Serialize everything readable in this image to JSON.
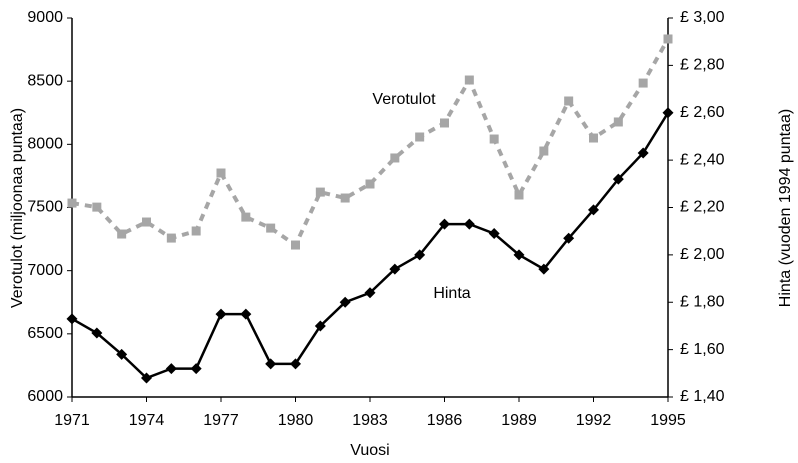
{
  "chart_data": {
    "type": "line",
    "x": [
      1971,
      1972,
      1973,
      1974,
      1975,
      1976,
      1977,
      1978,
      1979,
      1980,
      1981,
      1982,
      1983,
      1984,
      1985,
      1986,
      1987,
      1988,
      1989,
      1990,
      1991,
      1992,
      1993,
      1994,
      1995
    ],
    "series": [
      {
        "name": "Verotulot",
        "color": "#a6a6a6",
        "axis": "y",
        "values": [
          7535,
          7503,
          7290,
          7385,
          7258,
          7314,
          7773,
          7424,
          7337,
          7203,
          7622,
          7575,
          7686,
          7892,
          8058,
          8169,
          8509,
          8042,
          7599,
          7947,
          8343,
          8050,
          8177,
          8485,
          8834
        ]
      },
      {
        "name": "Hinta",
        "color": "#000000",
        "axis": "y2",
        "values": [
          1.73,
          1.67,
          1.58,
          1.48,
          1.52,
          1.52,
          1.75,
          1.75,
          1.54,
          1.54,
          1.7,
          1.8,
          1.84,
          1.94,
          2.0,
          2.13,
          2.13,
          2.09,
          2.0,
          1.94,
          2.07,
          2.19,
          2.32,
          2.43,
          2.6
        ]
      }
    ],
    "xlabel": "Vuosi",
    "ylabel": "Verotulot (miljoonaa puntaa)",
    "y2label": "Hinta (vuoden 1994 puntaa)",
    "xlim": [
      1971,
      1995
    ],
    "xticks": [
      1971,
      1974,
      1977,
      1980,
      1983,
      1986,
      1989,
      1992,
      1995
    ],
    "ylim": [
      6000,
      9000
    ],
    "yticks": [
      6000,
      6500,
      7000,
      7500,
      8000,
      8500,
      9000
    ],
    "y2lim": [
      1.4,
      3.0
    ],
    "y2ticks": [
      {
        "value": 1.4,
        "label": "£ 1,40"
      },
      {
        "value": 1.6,
        "label": "£ 1,60"
      },
      {
        "value": 1.8,
        "label": "£ 1,80"
      },
      {
        "value": 2.0,
        "label": "£ 2,00"
      },
      {
        "value": 2.2,
        "label": "£ 2,20"
      },
      {
        "value": 2.4,
        "label": "£ 2,40"
      },
      {
        "value": 2.6,
        "label": "£ 2,60"
      },
      {
        "value": 2.8,
        "label": "£ 2,80"
      },
      {
        "value": 3.0,
        "label": "£ 3,00"
      }
    ],
    "grid": false
  }
}
